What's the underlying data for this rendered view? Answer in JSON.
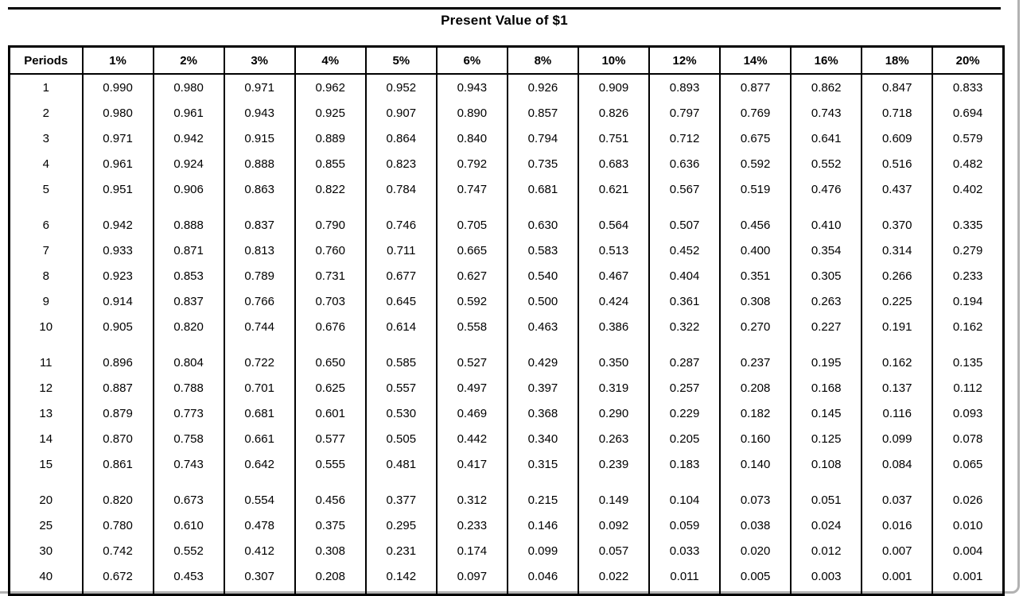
{
  "page": {
    "title": "Present Value of $1"
  },
  "colors": {
    "text": "#000000",
    "table_border": "#000000",
    "page_frame": "#b2b2b2",
    "background": "#ffffff"
  },
  "table": {
    "header": [
      "Periods",
      "1%",
      "2%",
      "3%",
      "4%",
      "5%",
      "6%",
      "8%",
      "10%",
      "12%",
      "14%",
      "16%",
      "18%",
      "20%"
    ],
    "groups": [
      {
        "rows": [
          {
            "period": "1",
            "values": [
              "0.990",
              "0.980",
              "0.971",
              "0.962",
              "0.952",
              "0.943",
              "0.926",
              "0.909",
              "0.893",
              "0.877",
              "0.862",
              "0.847",
              "0.833"
            ]
          },
          {
            "period": "2",
            "values": [
              "0.980",
              "0.961",
              "0.943",
              "0.925",
              "0.907",
              "0.890",
              "0.857",
              "0.826",
              "0.797",
              "0.769",
              "0.743",
              "0.718",
              "0.694"
            ]
          },
          {
            "period": "3",
            "values": [
              "0.971",
              "0.942",
              "0.915",
              "0.889",
              "0.864",
              "0.840",
              "0.794",
              "0.751",
              "0.712",
              "0.675",
              "0.641",
              "0.609",
              "0.579"
            ]
          },
          {
            "period": "4",
            "values": [
              "0.961",
              "0.924",
              "0.888",
              "0.855",
              "0.823",
              "0.792",
              "0.735",
              "0.683",
              "0.636",
              "0.592",
              "0.552",
              "0.516",
              "0.482"
            ]
          },
          {
            "period": "5",
            "values": [
              "0.951",
              "0.906",
              "0.863",
              "0.822",
              "0.784",
              "0.747",
              "0.681",
              "0.621",
              "0.567",
              "0.519",
              "0.476",
              "0.437",
              "0.402"
            ]
          }
        ]
      },
      {
        "rows": [
          {
            "period": "6",
            "values": [
              "0.942",
              "0.888",
              "0.837",
              "0.790",
              "0.746",
              "0.705",
              "0.630",
              "0.564",
              "0.507",
              "0.456",
              "0.410",
              "0.370",
              "0.335"
            ]
          },
          {
            "period": "7",
            "values": [
              "0.933",
              "0.871",
              "0.813",
              "0.760",
              "0.711",
              "0.665",
              "0.583",
              "0.513",
              "0.452",
              "0.400",
              "0.354",
              "0.314",
              "0.279"
            ]
          },
          {
            "period": "8",
            "values": [
              "0.923",
              "0.853",
              "0.789",
              "0.731",
              "0.677",
              "0.627",
              "0.540",
              "0.467",
              "0.404",
              "0.351",
              "0.305",
              "0.266",
              "0.233"
            ]
          },
          {
            "period": "9",
            "values": [
              "0.914",
              "0.837",
              "0.766",
              "0.703",
              "0.645",
              "0.592",
              "0.500",
              "0.424",
              "0.361",
              "0.308",
              "0.263",
              "0.225",
              "0.194"
            ]
          },
          {
            "period": "10",
            "values": [
              "0.905",
              "0.820",
              "0.744",
              "0.676",
              "0.614",
              "0.558",
              "0.463",
              "0.386",
              "0.322",
              "0.270",
              "0.227",
              "0.191",
              "0.162"
            ]
          }
        ]
      },
      {
        "rows": [
          {
            "period": "11",
            "values": [
              "0.896",
              "0.804",
              "0.722",
              "0.650",
              "0.585",
              "0.527",
              "0.429",
              "0.350",
              "0.287",
              "0.237",
              "0.195",
              "0.162",
              "0.135"
            ]
          },
          {
            "period": "12",
            "values": [
              "0.887",
              "0.788",
              "0.701",
              "0.625",
              "0.557",
              "0.497",
              "0.397",
              "0.319",
              "0.257",
              "0.208",
              "0.168",
              "0.137",
              "0.112"
            ]
          },
          {
            "period": "13",
            "values": [
              "0.879",
              "0.773",
              "0.681",
              "0.601",
              "0.530",
              "0.469",
              "0.368",
              "0.290",
              "0.229",
              "0.182",
              "0.145",
              "0.116",
              "0.093"
            ]
          },
          {
            "period": "14",
            "values": [
              "0.870",
              "0.758",
              "0.661",
              "0.577",
              "0.505",
              "0.442",
              "0.340",
              "0.263",
              "0.205",
              "0.160",
              "0.125",
              "0.099",
              "0.078"
            ]
          },
          {
            "period": "15",
            "values": [
              "0.861",
              "0.743",
              "0.642",
              "0.555",
              "0.481",
              "0.417",
              "0.315",
              "0.239",
              "0.183",
              "0.140",
              "0.108",
              "0.084",
              "0.065"
            ]
          }
        ]
      },
      {
        "rows": [
          {
            "period": "20",
            "values": [
              "0.820",
              "0.673",
              "0.554",
              "0.456",
              "0.377",
              "0.312",
              "0.215",
              "0.149",
              "0.104",
              "0.073",
              "0.051",
              "0.037",
              "0.026"
            ]
          },
          {
            "period": "25",
            "values": [
              "0.780",
              "0.610",
              "0.478",
              "0.375",
              "0.295",
              "0.233",
              "0.146",
              "0.092",
              "0.059",
              "0.038",
              "0.024",
              "0.016",
              "0.010"
            ]
          },
          {
            "period": "30",
            "values": [
              "0.742",
              "0.552",
              "0.412",
              "0.308",
              "0.231",
              "0.174",
              "0.099",
              "0.057",
              "0.033",
              "0.020",
              "0.012",
              "0.007",
              "0.004"
            ]
          },
          {
            "period": "40",
            "values": [
              "0.672",
              "0.453",
              "0.307",
              "0.208",
              "0.142",
              "0.097",
              "0.046",
              "0.022",
              "0.011",
              "0.005",
              "0.003",
              "0.001",
              "0.001"
            ]
          }
        ]
      }
    ]
  }
}
